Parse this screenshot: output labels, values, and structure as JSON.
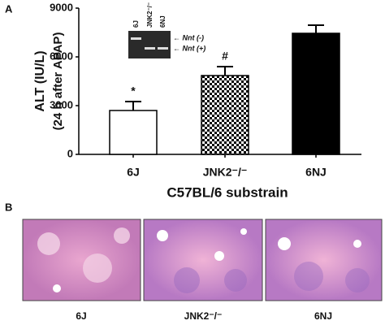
{
  "panel_labels": [
    "A",
    "B"
  ],
  "chart_data": {
    "type": "bar",
    "y_label": [
      "ALT (IU/L)",
      "(24 h after APAP)"
    ],
    "x_label": "C57BL/6 substrain",
    "categories": [
      "6J",
      "JNK2⁻/⁻",
      "6NJ"
    ],
    "values": [
      2700,
      4850,
      7450
    ],
    "errors": [
      550,
      550,
      500
    ],
    "fills": [
      "white",
      "checker",
      "black"
    ],
    "annotations": [
      "*",
      "#"
    ],
    "ylim": [
      0,
      9000
    ],
    "yticks": [
      0,
      3000,
      6000,
      9000
    ],
    "grid": false
  },
  "gel": {
    "lanes": [
      "6J",
      "JNK2⁻/⁻",
      "6NJ"
    ],
    "bands": [
      "← Nnt (-)",
      "← Nnt (+)"
    ]
  },
  "histology": {
    "labels": [
      "6J",
      "JNK2⁻/⁻",
      "6NJ"
    ]
  }
}
